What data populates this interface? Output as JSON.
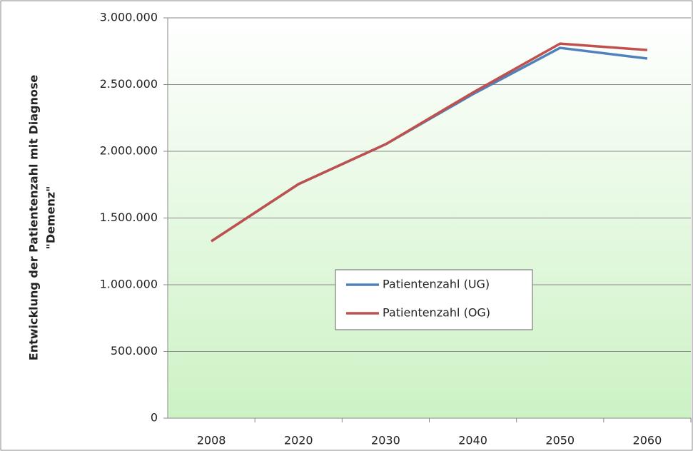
{
  "chart_data": {
    "type": "line",
    "ylabel": [
      "Entwicklung der Patientenzahl mit Diagnose",
      "\"Demenz\""
    ],
    "categories": [
      "2008",
      "2020",
      "2030",
      "2040",
      "2050",
      "2060"
    ],
    "series": [
      {
        "name": "Patientenzahl (UG)",
        "color": "#4f81bd",
        "values": [
          1326000,
          1754000,
          2053000,
          2428000,
          2775000,
          2695000
        ]
      },
      {
        "name": "Patientenzahl (OG)",
        "color": "#c0504d",
        "values": [
          1326000,
          1754000,
          2053000,
          2440000,
          2807000,
          2759000
        ]
      }
    ],
    "ylim": [
      0,
      3000000
    ],
    "yticks": [
      0,
      {
        "value": 500000,
        "label": "500.000"
      },
      {
        "value": 1000000,
        "label": "1.000.000"
      },
      {
        "value": 1500000,
        "label": "1.500.000"
      },
      {
        "value": 2000000,
        "label": "2.000.000"
      },
      {
        "value": 2500000,
        "label": "2.500.000"
      },
      {
        "value": 3000000,
        "label": "3.000.000"
      }
    ],
    "grid": true
  }
}
